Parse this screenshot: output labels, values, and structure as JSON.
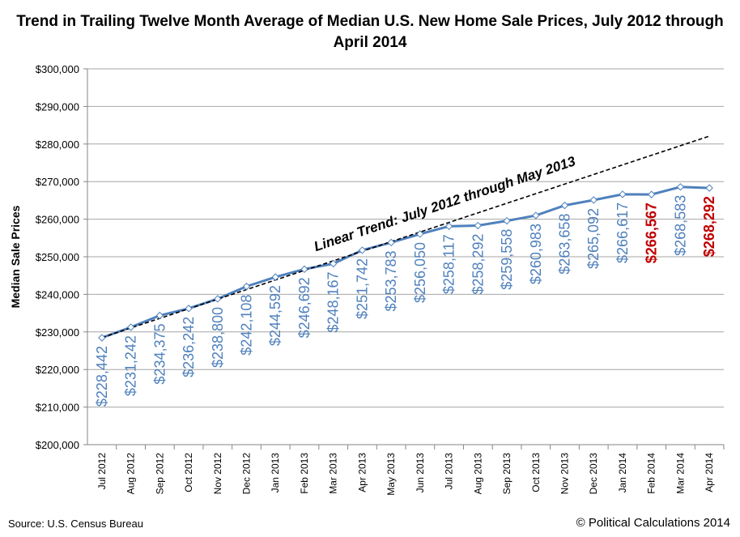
{
  "chart_data": {
    "type": "line",
    "title": "Trend in Trailing Twelve Month Average of Median U.S. New Home Sale Prices, July 2012 through April 2014",
    "ylabel": "Median Sale Prices",
    "xlabel": "",
    "ylim": [
      200000,
      300000
    ],
    "ytick_step": 10000,
    "grid": true,
    "categories": [
      "Jul 2012",
      "Aug 2012",
      "Sep 2012",
      "Oct 2012",
      "Nov 2012",
      "Dec 2012",
      "Jan 2013",
      "Feb 2013",
      "Mar 2013",
      "Apr 2013",
      "May 2013",
      "Jun 2013",
      "Jul 2013",
      "Aug 2013",
      "Sep 2013",
      "Oct 2013",
      "Nov 2013",
      "Dec 2013",
      "Jan 2014",
      "Feb 2014",
      "Mar 2014",
      "Apr 2014"
    ],
    "series": [
      {
        "values": [
          228442,
          231242,
          234375,
          236242,
          238800,
          242108,
          244592,
          246692,
          248167,
          251742,
          253783,
          256050,
          258117,
          258292,
          259558,
          260983,
          263658,
          265092,
          266617,
          266567,
          268583,
          268292
        ],
        "color": "#4f81bd"
      }
    ],
    "data_labels": [
      "$228,442",
      "$231,242",
      "$234,375",
      "$236,242",
      "$238,800",
      "$242,108",
      "$244,592",
      "$246,692",
      "$248,167",
      "$251,742",
      "$253,783",
      "$256,050",
      "$258,117",
      "$258,292",
      "$259,558",
      "$260,983",
      "$263,658",
      "$265,092",
      "$266,617",
      "$266,567",
      "$268,583",
      "$268,292"
    ],
    "highlight_indices": [
      19,
      21
    ],
    "highlight_color": "#c00000",
    "trend": {
      "label": "Linear Trend: July 2012 through May 2013",
      "start": 228500,
      "end": 282100,
      "style": "dashed",
      "color": "#000000"
    }
  },
  "footer": {
    "source": "Source: U.S. Census Bureau",
    "copyright": "© Political Calculations 2014"
  }
}
